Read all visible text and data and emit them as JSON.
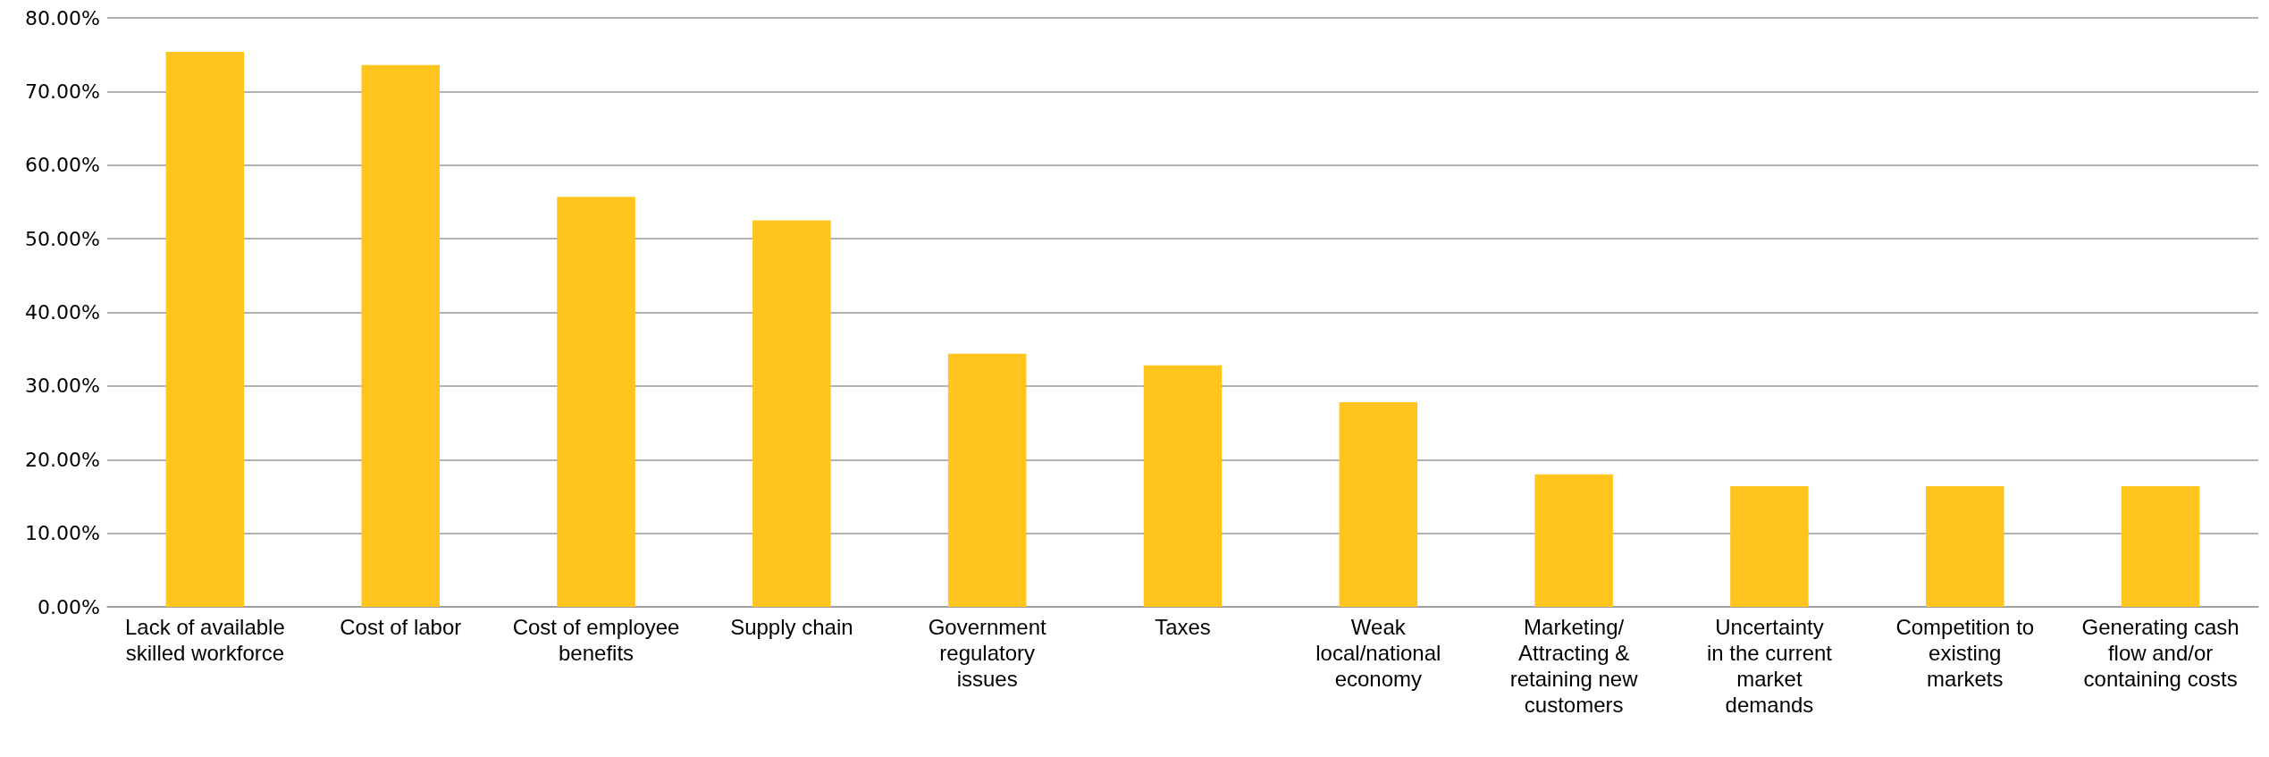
{
  "chart_data": {
    "type": "bar",
    "categories": [
      "Lack of available\nskilled workforce",
      "Cost of labor",
      "Cost of employee\nbenefits",
      "Supply chain",
      "Government\nregulatory\nissues",
      "Taxes",
      "Weak\nlocal/national\neconomy",
      "Marketing/\nAttracting &\nretaining new\ncustomers",
      "Uncertainty\nin the current\nmarket\ndemands",
      "Competition to\nexisting\nmarkets",
      "Generating cash\nflow and/or\ncontaining costs"
    ],
    "values": [
      75.4,
      73.6,
      55.7,
      52.5,
      34.4,
      32.8,
      27.8,
      18.0,
      16.4,
      16.4,
      16.4
    ],
    "color": "#ffc41e",
    "ylim": [
      0,
      80
    ],
    "yticks": [
      {
        "value": 0,
        "label": "0.00%"
      },
      {
        "value": 10,
        "label": "10.00%"
      },
      {
        "value": 20,
        "label": "20.00%"
      },
      {
        "value": 30,
        "label": "30.00%"
      },
      {
        "value": 40,
        "label": "40.00%"
      },
      {
        "value": 50,
        "label": "50.00%"
      },
      {
        "value": 60,
        "label": "60.00%"
      },
      {
        "value": 70,
        "label": "70.00%"
      },
      {
        "value": 80,
        "label": "80.00%"
      }
    ],
    "grid": "y"
  }
}
